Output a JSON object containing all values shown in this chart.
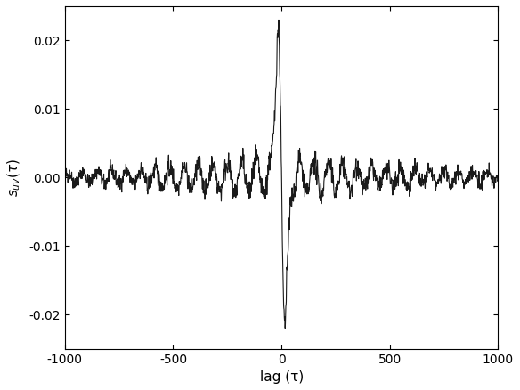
{
  "xlim": [
    -1000,
    1000
  ],
  "ylim": [
    -0.025,
    0.025
  ],
  "xticks": [
    -1000,
    -500,
    0,
    500,
    1000
  ],
  "yticks": [
    -0.02,
    -0.01,
    0,
    0.01,
    0.02
  ],
  "xlabel": "lag (τ)",
  "ylabel": "$s_{uv}(\\tau)$",
  "line_color": "#1a1a1a",
  "line_width": 0.8,
  "background_color": "#ffffff",
  "seed": 42,
  "N": 2001,
  "decay_slow": 0.0015,
  "decay_fast": 0.04,
  "freq": 0.015,
  "noise_base": 0.0028
}
